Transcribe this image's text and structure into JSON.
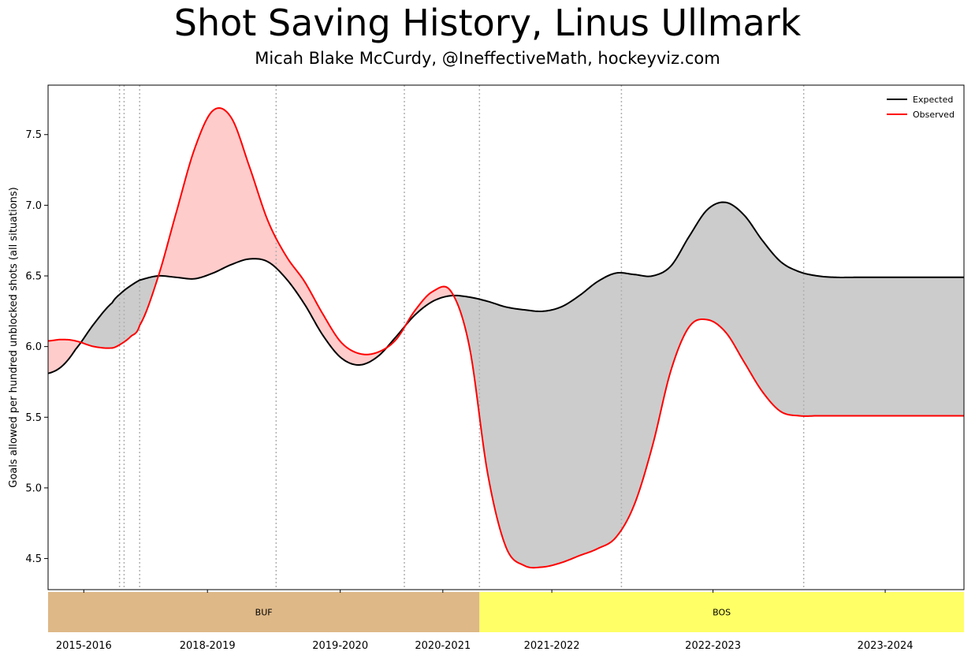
{
  "title": "Shot Saving History, Linus Ullmark",
  "subtitle": "Micah Blake McCurdy, @IneffectiveMath, hockeyviz.com",
  "chart_data": {
    "type": "line",
    "ylabel": "Goals allowed per hundred unblocked shots (all situations)",
    "ylim": [
      4.28,
      7.85
    ],
    "yticks": [
      4.5,
      5.0,
      5.5,
      6.0,
      6.5,
      7.0,
      7.5
    ],
    "xlim": [
      0,
      100
    ],
    "x": [
      0,
      1.5,
      3,
      5,
      7,
      8,
      9,
      10,
      12,
      14,
      16,
      18,
      20,
      22,
      24,
      26,
      28,
      30,
      32,
      34,
      36,
      38,
      40,
      42,
      44,
      46,
      48,
      50,
      52,
      54,
      56,
      58,
      60,
      62,
      64,
      66,
      68,
      70,
      72,
      74,
      76,
      78,
      80,
      82,
      84,
      86,
      88,
      90,
      92,
      94,
      96,
      98,
      100
    ],
    "series": [
      {
        "name": "Expected",
        "color": "#000000",
        "values": [
          5.81,
          5.86,
          5.98,
          6.16,
          6.31,
          6.38,
          6.43,
          6.47,
          6.5,
          6.49,
          6.48,
          6.52,
          6.58,
          6.62,
          6.6,
          6.48,
          6.3,
          6.08,
          5.92,
          5.87,
          5.93,
          6.07,
          6.22,
          6.32,
          6.36,
          6.35,
          6.32,
          6.28,
          6.26,
          6.25,
          6.28,
          6.36,
          6.46,
          6.52,
          6.51,
          6.5,
          6.57,
          6.78,
          6.97,
          7.02,
          6.93,
          6.75,
          6.6,
          6.53,
          6.5,
          6.49,
          6.49,
          6.49,
          6.49,
          6.49,
          6.49,
          6.49,
          6.49
        ]
      },
      {
        "name": "Observed",
        "color": "#ff0000",
        "values": [
          6.04,
          6.05,
          6.04,
          6.0,
          5.99,
          6.02,
          6.07,
          6.15,
          6.49,
          6.95,
          7.4,
          7.67,
          7.62,
          7.27,
          6.89,
          6.64,
          6.46,
          6.23,
          6.03,
          5.95,
          5.96,
          6.05,
          6.25,
          6.39,
          6.39,
          6.0,
          5.1,
          4.58,
          4.45,
          4.44,
          4.47,
          4.52,
          4.57,
          4.65,
          4.88,
          5.3,
          5.83,
          6.14,
          6.19,
          6.1,
          5.89,
          5.68,
          5.54,
          5.51,
          5.51,
          5.51,
          5.51,
          5.51,
          5.51,
          5.51,
          5.51,
          5.51,
          5.51
        ]
      }
    ],
    "season_boundaries_x": [
      7.8,
      8.3,
      10.0,
      24.9,
      38.9,
      47.1,
      62.6,
      82.5
    ],
    "xticks": [
      {
        "label": "2015-2016",
        "x": 3.9
      },
      {
        "label": "2018-2019",
        "x": 17.4
      },
      {
        "label": "2019-2020",
        "x": 31.9
      },
      {
        "label": "2020-2021",
        "x": 43.1
      },
      {
        "label": "2021-2022",
        "x": 55.0
      },
      {
        "label": "2022-2023",
        "x": 72.6
      },
      {
        "label": "2023-2024",
        "x": 91.4
      }
    ],
    "teams": [
      {
        "label": "BUF",
        "start": 0,
        "end": 47.1,
        "color": "#deb887"
      },
      {
        "label": "BOS",
        "start": 47.1,
        "end": 100,
        "color": "#ffff66"
      }
    ],
    "legend": {
      "position": "top-right"
    },
    "fill_colors": {
      "observed_above": "#ffcccc",
      "expected_above": "#cccccc"
    }
  }
}
